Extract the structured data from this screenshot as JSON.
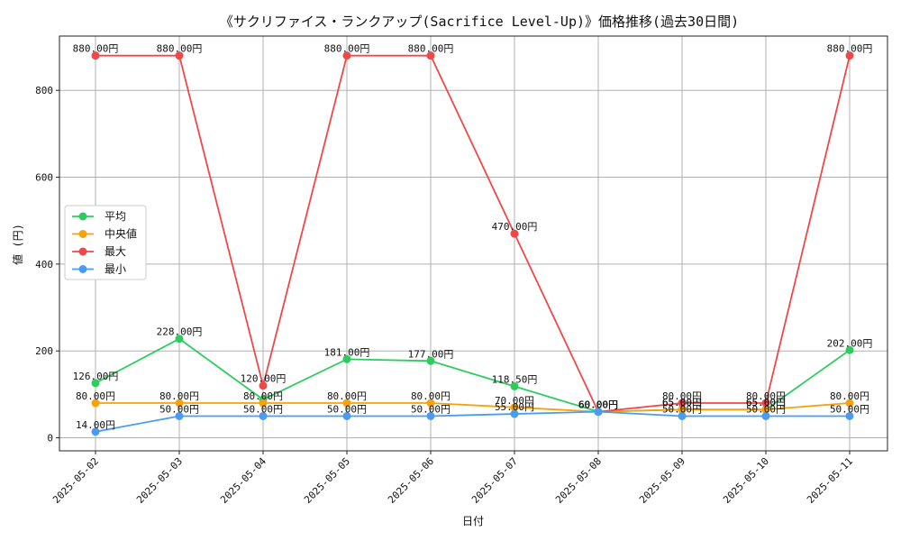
{
  "chart_data": {
    "type": "line",
    "title": "《サクリファイス・ランクアップ(Sacrifice Level-Up)》価格推移(過去30日間)",
    "xlabel": "日付",
    "ylabel": "値 (円)",
    "categories": [
      "2025-05-02",
      "2025-05-03",
      "2025-05-04",
      "2025-05-05",
      "2025-05-06",
      "2025-05-07",
      "2025-05-08",
      "2025-05-09",
      "2025-05-10",
      "2025-05-11"
    ],
    "ylim": [
      -30,
      925
    ],
    "yticks": [
      0,
      200,
      400,
      600,
      800
    ],
    "grid": true,
    "legend_position": "center-left",
    "series": [
      {
        "name": "平均",
        "color": "#2ecc5f",
        "values": [
          126,
          228,
          88,
          181,
          177,
          118.5,
          60,
          65,
          65,
          202
        ],
        "labels": [
          "126.00円",
          "228.00円",
          "",
          "181.00円",
          "177.00円",
          "118.50円",
          "60.00円",
          "65.00円",
          "65.00円",
          "202.00円"
        ]
      },
      {
        "name": "中央値",
        "color": "#f5a30a",
        "values": [
          80,
          80,
          80,
          80,
          80,
          70,
          60,
          65,
          65,
          80
        ],
        "labels": [
          "80.00円",
          "80.00円",
          "80.00円",
          "80.00円",
          "80.00円",
          "70.00円",
          "60.00円",
          "65.00円",
          "65.00円",
          "80.00円"
        ]
      },
      {
        "name": "最大",
        "color": "#f04848",
        "values": [
          880,
          880,
          120,
          880,
          880,
          470,
          60,
          80,
          80,
          880
        ],
        "labels": [
          "880.00円",
          "880.00円",
          "120.00円",
          "880.00円",
          "880.00円",
          "470.00円",
          "60.00円",
          "80.00円",
          "80.00円",
          "880.00円"
        ]
      },
      {
        "name": "最小",
        "color": "#4a9cf0",
        "values": [
          14,
          50,
          50,
          50,
          50,
          55,
          60,
          50,
          50,
          50
        ],
        "labels": [
          "14.00円",
          "50.00円",
          "50.00円",
          "50.00円",
          "50.00円",
          "55.00円",
          "60.00円",
          "50.00円",
          "50.00円",
          "50.00円"
        ]
      }
    ]
  }
}
